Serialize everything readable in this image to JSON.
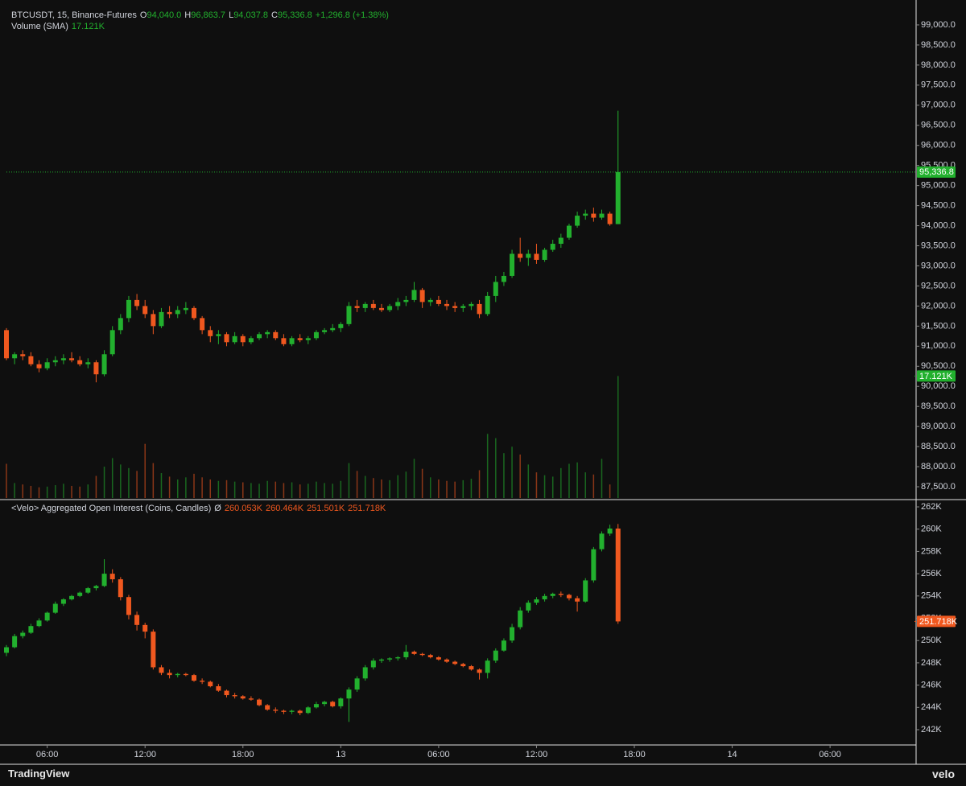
{
  "chart_data": {
    "type": "candlestick",
    "header": {
      "symbol": "BTCUSDT, 15, Binance-Futures",
      "fields": [
        [
          "O",
          "94,040.0"
        ],
        [
          "H",
          "96,863.7"
        ],
        [
          "L",
          "94,037.8"
        ],
        [
          "C",
          "95,336.8"
        ]
      ],
      "change": "+1,296.8 (+1.38%)",
      "volume_title": "Volume (SMA)",
      "volume_value": "17.121K"
    },
    "up_color": "#22b02e",
    "down_color": "#f0581f",
    "xlim": [
      0,
      111.55
    ],
    "xticks": [
      {
        "value": 5,
        "label": "06:00"
      },
      {
        "value": 17,
        "label": "12:00"
      },
      {
        "value": 29,
        "label": "18:00"
      },
      {
        "value": 41,
        "label": "13"
      },
      {
        "value": 53,
        "label": "06:00"
      },
      {
        "value": 65,
        "label": "12:00"
      },
      {
        "value": 77,
        "label": "18:00"
      },
      {
        "value": 89,
        "label": "14"
      },
      {
        "value": 101,
        "label": "06:00"
      }
    ],
    "price": {
      "ylim": [
        87220,
        99460
      ],
      "last_label": "95,336.8",
      "yticks": [
        {
          "value": 87500,
          "label": "87,500.0"
        },
        {
          "value": 88000,
          "label": "88,000.0"
        },
        {
          "value": 88500,
          "label": "88,500.0"
        },
        {
          "value": 89000,
          "label": "89,000.0"
        },
        {
          "value": 89500,
          "label": "89,500.0"
        },
        {
          "value": 90000,
          "label": "90,000.0"
        },
        {
          "value": 90500,
          "label": "90,500.0"
        },
        {
          "value": 91000,
          "label": "91,000.0"
        },
        {
          "value": 91500,
          "label": "91,500.0"
        },
        {
          "value": 92000,
          "label": "92,000.0"
        },
        {
          "value": 92500,
          "label": "92,500.0"
        },
        {
          "value": 93000,
          "label": "93,000.0"
        },
        {
          "value": 93500,
          "label": "93,500.0"
        },
        {
          "value": 94000,
          "label": "94,000.0"
        },
        {
          "value": 94500,
          "label": "94,500.0"
        },
        {
          "value": 95000,
          "label": "95,000.0"
        },
        {
          "value": 95500,
          "label": "95,500.0"
        },
        {
          "value": 96000,
          "label": "96,000.0"
        },
        {
          "value": 96500,
          "label": "96,500.0"
        },
        {
          "value": 97000,
          "label": "97,000.0"
        },
        {
          "value": 97500,
          "label": "97,500.0"
        },
        {
          "value": 98000,
          "label": "98,000.0"
        },
        {
          "value": 98500,
          "label": "98,500.0"
        },
        {
          "value": 99000,
          "label": "99,000.0"
        }
      ],
      "ohlc": [
        [
          91400,
          91450,
          90650,
          90700
        ],
        [
          90700,
          90850,
          90550,
          90800
        ],
        [
          90800,
          90900,
          90650,
          90750
        ],
        [
          90750,
          90850,
          90500,
          90550
        ],
        [
          90550,
          90650,
          90350,
          90450
        ],
        [
          90450,
          90700,
          90400,
          90600
        ],
        [
          90600,
          90750,
          90500,
          90650
        ],
        [
          90650,
          90800,
          90550,
          90700
        ],
        [
          90700,
          90850,
          90600,
          90650
        ],
        [
          90650,
          90750,
          90500,
          90550
        ],
        [
          90550,
          90700,
          90450,
          90600
        ],
        [
          90600,
          90650,
          90100,
          90300
        ],
        [
          90300,
          90900,
          90250,
          90800
        ],
        [
          90800,
          91500,
          90750,
          91400
        ],
        [
          91400,
          91800,
          91300,
          91700
        ],
        [
          91700,
          92250,
          91600,
          92150
        ],
        [
          92150,
          92300,
          91900,
          92000
        ],
        [
          92000,
          92150,
          91700,
          91800
        ],
        [
          91800,
          91900,
          91300,
          91500
        ],
        [
          91500,
          91950,
          91450,
          91850
        ],
        [
          91850,
          92000,
          91700,
          91800
        ],
        [
          91800,
          92000,
          91700,
          91900
        ],
        [
          91900,
          92100,
          91800,
          91950
        ],
        [
          91950,
          92000,
          91650,
          91700
        ],
        [
          91700,
          91750,
          91300,
          91400
        ],
        [
          91400,
          91500,
          91100,
          91250
        ],
        [
          91250,
          91400,
          91050,
          91300
        ],
        [
          91300,
          91350,
          91000,
          91100
        ],
        [
          91100,
          91350,
          91050,
          91250
        ],
        [
          91250,
          91300,
          91000,
          91100
        ],
        [
          91100,
          91250,
          91050,
          91200
        ],
        [
          91200,
          91350,
          91150,
          91300
        ],
        [
          91300,
          91400,
          91200,
          91350
        ],
        [
          91350,
          91400,
          91150,
          91200
        ],
        [
          91200,
          91300,
          91000,
          91050
        ],
        [
          91050,
          91250,
          91000,
          91200
        ],
        [
          91200,
          91300,
          91100,
          91150
        ],
        [
          91150,
          91250,
          91050,
          91200
        ],
        [
          91200,
          91400,
          91150,
          91350
        ],
        [
          91350,
          91450,
          91300,
          91400
        ],
        [
          91400,
          91550,
          91350,
          91450
        ],
        [
          91450,
          91600,
          91350,
          91550
        ],
        [
          91550,
          92100,
          91500,
          92000
        ],
        [
          92000,
          92150,
          91850,
          91950
        ],
        [
          91950,
          92100,
          91850,
          92050
        ],
        [
          92050,
          92150,
          91900,
          91950
        ],
        [
          91950,
          92050,
          91850,
          91900
        ],
        [
          91900,
          92050,
          91850,
          92000
        ],
        [
          92000,
          92200,
          91900,
          92100
        ],
        [
          92100,
          92250,
          92000,
          92150
        ],
        [
          92150,
          92600,
          92100,
          92400
        ],
        [
          92400,
          92450,
          91950,
          92100
        ],
        [
          92100,
          92200,
          92000,
          92150
        ],
        [
          92150,
          92250,
          92000,
          92050
        ],
        [
          92050,
          92150,
          91900,
          92000
        ],
        [
          92000,
          92100,
          91850,
          91950
        ],
        [
          91950,
          92050,
          91850,
          92000
        ],
        [
          92000,
          92100,
          91900,
          92050
        ],
        [
          92050,
          92150,
          91700,
          91800
        ],
        [
          91800,
          92350,
          91750,
          92250
        ],
        [
          92250,
          92750,
          92100,
          92600
        ],
        [
          92600,
          92850,
          92500,
          92750
        ],
        [
          92750,
          93400,
          92700,
          93300
        ],
        [
          93300,
          93700,
          93100,
          93200
        ],
        [
          93200,
          93400,
          93000,
          93300
        ],
        [
          93300,
          93550,
          93050,
          93150
        ],
        [
          93150,
          93450,
          93100,
          93400
        ],
        [
          93400,
          93650,
          93350,
          93550
        ],
        [
          93550,
          93800,
          93450,
          93700
        ],
        [
          93700,
          94050,
          93650,
          94000
        ],
        [
          94000,
          94350,
          93950,
          94250
        ],
        [
          94250,
          94400,
          94150,
          94300
        ],
        [
          94300,
          94450,
          94100,
          94200
        ],
        [
          94200,
          94400,
          94150,
          94300
        ],
        [
          94300,
          94350,
          94000,
          94040
        ],
        [
          94040,
          96863.7,
          94037.8,
          95336.8
        ]
      ]
    },
    "volume": {
      "ylim": [
        0,
        69000
      ],
      "last_label": "17.121K",
      "values": [
        4800,
        2100,
        1900,
        1700,
        1500,
        1600,
        1800,
        2000,
        1700,
        1600,
        1900,
        3100,
        4400,
        5600,
        4700,
        4200,
        3800,
        7600,
        4900,
        3500,
        3000,
        2600,
        2900,
        3400,
        2900,
        2600,
        2400,
        2500,
        2300,
        2200,
        2100,
        2000,
        2400,
        2300,
        2100,
        2200,
        1900,
        2000,
        2300,
        2100,
        2000,
        2400,
        4900,
        3800,
        3100,
        2800,
        2600,
        2500,
        3200,
        3700,
        5500,
        4100,
        2900,
        2600,
        2400,
        2300,
        2500,
        2700,
        3900,
        9000,
        8400,
        6300,
        7200,
        6100,
        4700,
        3600,
        3200,
        3000,
        4200,
        4800,
        5000,
        3600,
        3300,
        5500,
        1900,
        17121
      ]
    },
    "open_interest": {
      "title": "<Velo> Aggregated Open Interest (Coins, Candles)",
      "symbol": "Ø",
      "values": [
        "260.053K",
        "260.464K",
        "251.501K",
        "251.718K"
      ],
      "last_label": "251.718K",
      "ylim": [
        240.7,
        262.58
      ],
      "yticks": [
        {
          "value": 242,
          "label": "242K"
        },
        {
          "value": 244,
          "label": "244K"
        },
        {
          "value": 246,
          "label": "246K"
        },
        {
          "value": 248,
          "label": "248K"
        },
        {
          "value": 250,
          "label": "250K"
        },
        {
          "value": 252,
          "label": "252K"
        },
        {
          "value": 254,
          "label": "254K"
        },
        {
          "value": 256,
          "label": "256K"
        },
        {
          "value": 258,
          "label": "258K"
        },
        {
          "value": 260,
          "label": "260K"
        },
        {
          "value": 262,
          "label": "262K"
        }
      ],
      "ohlc": [
        [
          248.9,
          249.6,
          248.6,
          249.4
        ],
        [
          249.4,
          250.6,
          249.3,
          250.4
        ],
        [
          250.4,
          250.9,
          250.2,
          250.7
        ],
        [
          250.7,
          251.5,
          250.6,
          251.3
        ],
        [
          251.3,
          252.0,
          251.2,
          251.8
        ],
        [
          251.8,
          252.6,
          251.7,
          252.5
        ],
        [
          252.5,
          253.5,
          252.4,
          253.3
        ],
        [
          253.3,
          253.8,
          253.1,
          253.7
        ],
        [
          253.7,
          254.1,
          253.6,
          254.0
        ],
        [
          254.0,
          254.4,
          253.9,
          254.3
        ],
        [
          254.3,
          254.8,
          254.2,
          254.7
        ],
        [
          254.7,
          255.0,
          254.5,
          254.9
        ],
        [
          254.9,
          257.3,
          254.8,
          256.0
        ],
        [
          256.0,
          256.4,
          255.2,
          255.5
        ],
        [
          255.5,
          255.7,
          253.6,
          253.9
        ],
        [
          253.9,
          254.1,
          251.9,
          252.3
        ],
        [
          252.3,
          252.6,
          250.9,
          251.4
        ],
        [
          251.4,
          251.6,
          250.2,
          250.8
        ],
        [
          250.8,
          251.0,
          247.4,
          247.6
        ],
        [
          247.6,
          247.8,
          246.9,
          247.1
        ],
        [
          247.1,
          247.4,
          246.6,
          246.9
        ],
        [
          246.9,
          247.1,
          246.7,
          247.0
        ],
        [
          247.0,
          247.1,
          246.8,
          246.9
        ],
        [
          246.9,
          247.0,
          246.3,
          246.4
        ],
        [
          246.4,
          246.6,
          246.1,
          246.3
        ],
        [
          246.3,
          246.4,
          245.8,
          245.9
        ],
        [
          245.9,
          246.1,
          245.4,
          245.5
        ],
        [
          245.5,
          245.6,
          244.9,
          245.1
        ],
        [
          245.1,
          245.3,
          244.8,
          245.0
        ],
        [
          245.0,
          245.1,
          244.7,
          244.8
        ],
        [
          244.8,
          245.0,
          244.6,
          244.7
        ],
        [
          244.7,
          244.8,
          244.1,
          244.2
        ],
        [
          244.2,
          244.3,
          243.7,
          243.8
        ],
        [
          243.8,
          244.0,
          243.5,
          243.7
        ],
        [
          243.7,
          243.8,
          243.4,
          243.6
        ],
        [
          243.6,
          243.8,
          243.4,
          243.7
        ],
        [
          243.7,
          243.8,
          243.3,
          243.5
        ],
        [
          243.5,
          244.1,
          243.4,
          244.0
        ],
        [
          244.0,
          244.5,
          243.9,
          244.3
        ],
        [
          244.3,
          244.6,
          244.1,
          244.5
        ],
        [
          244.5,
          244.6,
          244.0,
          244.1
        ],
        [
          244.1,
          244.9,
          243.9,
          244.8
        ],
        [
          244.8,
          245.8,
          242.7,
          245.6
        ],
        [
          245.6,
          246.8,
          245.4,
          246.6
        ],
        [
          246.6,
          247.8,
          246.4,
          247.6
        ],
        [
          247.6,
          248.4,
          247.4,
          248.2
        ],
        [
          248.2,
          248.4,
          248.0,
          248.3
        ],
        [
          248.3,
          248.5,
          248.1,
          248.4
        ],
        [
          248.4,
          248.6,
          248.2,
          248.5
        ],
        [
          248.5,
          249.6,
          248.3,
          249.0
        ],
        [
          249.0,
          249.1,
          248.7,
          248.8
        ],
        [
          248.8,
          248.9,
          248.6,
          248.7
        ],
        [
          248.7,
          248.8,
          248.4,
          248.5
        ],
        [
          248.5,
          248.6,
          248.2,
          248.3
        ],
        [
          248.3,
          248.4,
          248.0,
          248.1
        ],
        [
          248.1,
          248.2,
          247.8,
          247.9
        ],
        [
          247.9,
          248.0,
          247.6,
          247.7
        ],
        [
          247.7,
          247.8,
          247.3,
          247.4
        ],
        [
          247.4,
          247.5,
          246.5,
          247.1
        ],
        [
          247.1,
          248.4,
          246.6,
          248.2
        ],
        [
          248.2,
          249.3,
          248.0,
          249.1
        ],
        [
          249.1,
          250.2,
          249.0,
          250.0
        ],
        [
          250.0,
          251.5,
          249.8,
          251.2
        ],
        [
          251.2,
          253.0,
          251.0,
          252.7
        ],
        [
          252.7,
          253.6,
          252.5,
          253.4
        ],
        [
          253.4,
          253.9,
          253.2,
          253.7
        ],
        [
          253.7,
          254.2,
          253.5,
          254.0
        ],
        [
          254.0,
          254.3,
          253.8,
          254.2
        ],
        [
          254.2,
          254.4,
          253.9,
          254.1
        ],
        [
          254.1,
          254.2,
          253.6,
          253.8
        ],
        [
          253.8,
          254.0,
          252.6,
          253.5
        ],
        [
          253.5,
          255.6,
          253.4,
          255.4
        ],
        [
          255.4,
          258.4,
          255.2,
          258.2
        ],
        [
          258.2,
          259.8,
          258.0,
          259.6
        ],
        [
          259.6,
          260.4,
          259.4,
          260.053
        ],
        [
          260.053,
          260.464,
          251.501,
          251.718
        ]
      ]
    }
  },
  "footer": {
    "brand": "TradingView",
    "source": "velo"
  }
}
